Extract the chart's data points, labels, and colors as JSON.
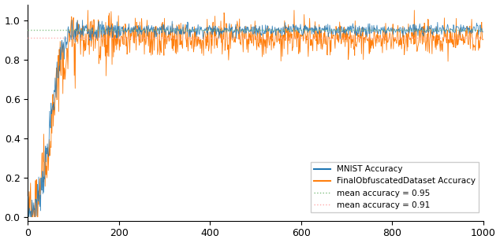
{
  "title": "",
  "xlabel": "",
  "ylabel": "",
  "xlim": [
    0,
    1000
  ],
  "ylim": [
    -0.02,
    1.08
  ],
  "yticks": [
    0.0,
    0.2,
    0.4,
    0.6,
    0.8,
    1.0
  ],
  "xticks": [
    0,
    200,
    400,
    600,
    800,
    1000
  ],
  "mnist_color": "#1f77b4",
  "obfuscated_color": "#ff7f0e",
  "mnist_mean": 0.95,
  "obfuscated_mean": 0.91,
  "mean_mnist_color": "#7fbf7f",
  "mean_obf_color": "#ffaaaa",
  "n_points": 1000,
  "legend_labels": [
    "MNIST Accuracy",
    "FinalObfuscatedDataset Accuracy",
    "mean accuracy = 0.95",
    "mean accuracy = 0.91"
  ],
  "background_color": "#ffffff",
  "figsize": [
    6.34,
    3.09
  ],
  "dpi": 100
}
